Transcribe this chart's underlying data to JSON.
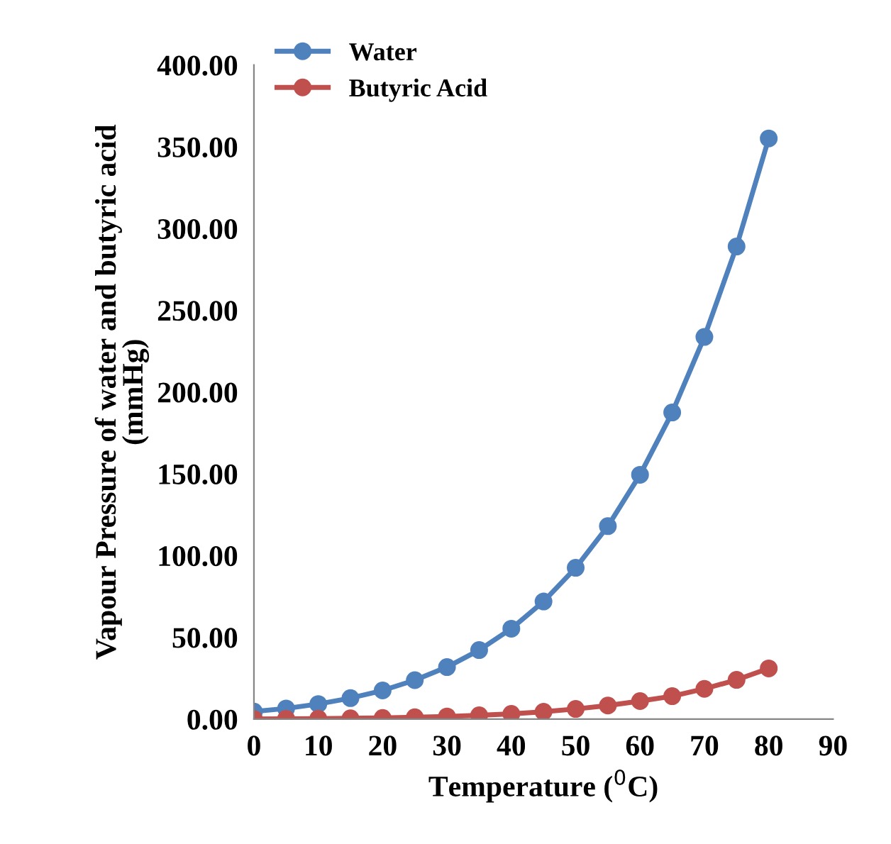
{
  "chart_data": {
    "type": "line",
    "xlabel": "Temperature ($^{0}$C)",
    "ylabel": "Vapour Pressure of water and butyric acid\n(mmHg)",
    "x": [
      0,
      5,
      10,
      15,
      20,
      25,
      30,
      35,
      40,
      45,
      50,
      55,
      60,
      65,
      70,
      75,
      80
    ],
    "series": [
      {
        "name": "Water",
        "color": "#4f81bd",
        "values": [
          4.6,
          6.5,
          9.2,
          12.8,
          17.5,
          23.8,
          31.8,
          42.2,
          55.3,
          71.9,
          92.5,
          118,
          149.4,
          187.5,
          233.7,
          289,
          355.1
        ]
      },
      {
        "name": "Butyric Acid",
        "color": "#c0504d",
        "values": [
          0.1,
          0.2,
          0.3,
          0.5,
          0.7,
          1.1,
          1.6,
          2.3,
          3.2,
          4.5,
          6.2,
          8.3,
          11,
          14,
          18.5,
          24,
          31
        ]
      }
    ],
    "xlim": [
      0,
      90
    ],
    "xticks": [
      0,
      10,
      20,
      30,
      40,
      50,
      60,
      70,
      80,
      90
    ],
    "ylim": [
      0,
      400
    ],
    "yticks": [
      {
        "value": 0,
        "label": "0.00"
      },
      {
        "value": 50,
        "label": "50.00"
      },
      {
        "value": 100,
        "label": "100.00"
      },
      {
        "value": 150,
        "label": "150.00"
      },
      {
        "value": 200,
        "label": "200.00"
      },
      {
        "value": 250,
        "label": "250.00"
      },
      {
        "value": 300,
        "label": "300.00"
      },
      {
        "value": 350,
        "label": "350.00"
      },
      {
        "value": 400,
        "label": "400.00"
      }
    ],
    "grid": false,
    "legend": "top left",
    "marker": "circle",
    "line_style": "solid"
  }
}
